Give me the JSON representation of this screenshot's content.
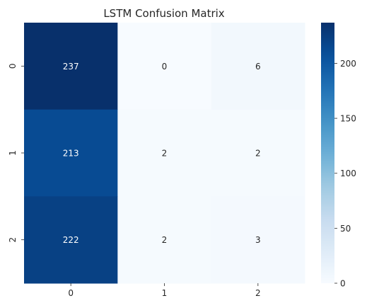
{
  "chart_data": {
    "type": "heatmap",
    "title": "LSTM Confusion Matrix",
    "xlabel": "",
    "ylabel": "",
    "x_categories": [
      "0",
      "1",
      "2"
    ],
    "y_categories": [
      "0",
      "1",
      "2"
    ],
    "values": [
      [
        237,
        0,
        6
      ],
      [
        213,
        2,
        2
      ],
      [
        222,
        2,
        3
      ]
    ],
    "colormap": "Blues",
    "vmin": 0,
    "vmax": 237,
    "colorbar": {
      "ticks": [
        0,
        50,
        100,
        150,
        200
      ]
    }
  }
}
